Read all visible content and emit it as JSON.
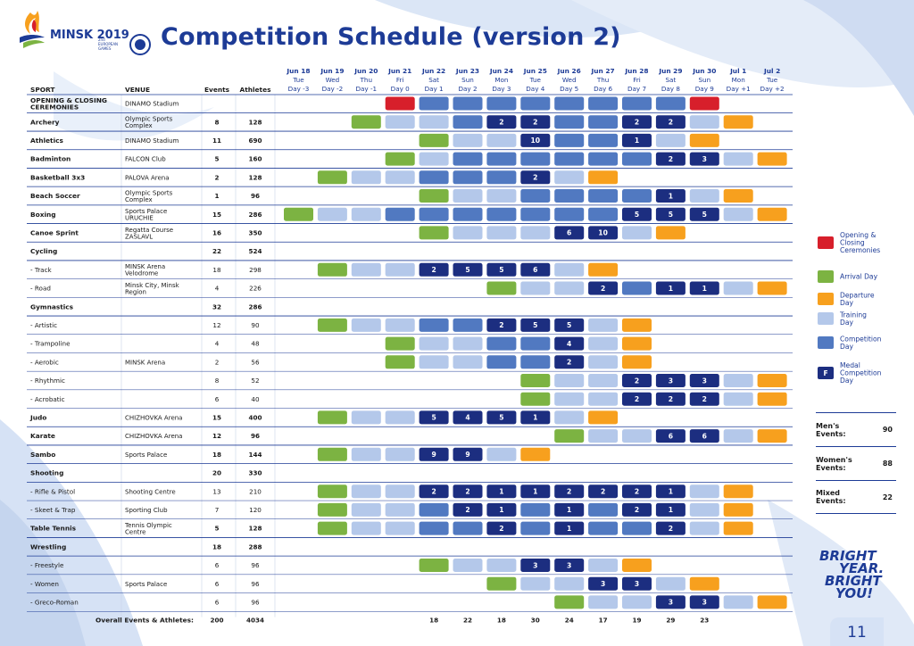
{
  "header": {
    "title": "Competition Schedule (version 2)",
    "logo_text": "MINSK 2019",
    "logo_sub": "2nd EUROPEAN GAMES",
    "page_number": "11"
  },
  "columns": {
    "sport": "SPORT",
    "venue": "VENUE",
    "events": "Events",
    "athletes": "Athletes"
  },
  "days": [
    {
      "date": "Jun 18",
      "dow": "Tue",
      "label": "Day -3"
    },
    {
      "date": "Jun 19",
      "dow": "Wed",
      "label": "Day -2"
    },
    {
      "date": "Jun 20",
      "dow": "Thu",
      "label": "Day -1"
    },
    {
      "date": "Jun 21",
      "dow": "Fri",
      "label": "Day 0"
    },
    {
      "date": "Jun 22",
      "dow": "Sat",
      "label": "Day 1"
    },
    {
      "date": "Jun 23",
      "dow": "Sun",
      "label": "Day 2"
    },
    {
      "date": "Jun 24",
      "dow": "Mon",
      "label": "Day 3"
    },
    {
      "date": "Jun 25",
      "dow": "Tue",
      "label": "Day 4"
    },
    {
      "date": "Jun 26",
      "dow": "Wed",
      "label": "Day 5"
    },
    {
      "date": "Jun 27",
      "dow": "Thu",
      "label": "Day 6"
    },
    {
      "date": "Jun 28",
      "dow": "Fri",
      "label": "Day 7"
    },
    {
      "date": "Jun 29",
      "dow": "Sat",
      "label": "Day 8"
    },
    {
      "date": "Jun 30",
      "dow": "Sun",
      "label": "Day 9"
    },
    {
      "date": "Jul 1",
      "dow": "Mon",
      "label": "Day +1"
    },
    {
      "date": "Jul 2",
      "dow": "Tue",
      "label": "Day +2"
    }
  ],
  "rows": [
    {
      "sport": "OPENING & CLOSING CEREMONIES",
      "venue": "DINAMO Stadium",
      "events": "",
      "athletes": "",
      "bold": true,
      "cells": [
        "",
        "",
        "",
        "O",
        "C",
        "C",
        "C",
        "C",
        "C",
        "C",
        "C",
        "C",
        "O",
        "",
        ""
      ]
    },
    {
      "sport": "Archery",
      "venue": "Olympic Sports Complex",
      "events": "8",
      "athletes": "128",
      "bold": true,
      "cells": [
        "",
        "",
        "A",
        "T",
        "T",
        "C",
        "M:2",
        "M:2",
        "C",
        "C",
        "M:2",
        "M:2",
        "T",
        "D",
        ""
      ]
    },
    {
      "sport": "Athletics",
      "venue": "DINAMO Stadium",
      "events": "11",
      "athletes": "690",
      "bold": true,
      "cells": [
        "",
        "",
        "",
        "",
        "A",
        "T",
        "T",
        "M:10",
        "C",
        "C",
        "M:1",
        "T",
        "D",
        "",
        ""
      ]
    },
    {
      "sport": "Badminton",
      "venue": "FALCON Club",
      "events": "5",
      "athletes": "160",
      "bold": true,
      "cells": [
        "",
        "",
        "",
        "A",
        "T",
        "C",
        "C",
        "C",
        "C",
        "C",
        "C",
        "M:2",
        "M:3",
        "T",
        "D"
      ]
    },
    {
      "sport": "Basketball 3x3",
      "venue": "PALOVA Arena",
      "events": "2",
      "athletes": "128",
      "bold": true,
      "cells": [
        "",
        "A",
        "T",
        "T",
        "C",
        "C",
        "C",
        "M:2",
        "T",
        "D",
        "",
        "",
        "",
        "",
        ""
      ]
    },
    {
      "sport": "Beach Soccer",
      "venue": "Olympic Sports Complex",
      "events": "1",
      "athletes": "96",
      "bold": true,
      "cells": [
        "",
        "",
        "",
        "",
        "A",
        "T",
        "T",
        "C",
        "C",
        "C",
        "C",
        "M:1",
        "T",
        "D",
        ""
      ]
    },
    {
      "sport": "Boxing",
      "venue": "Sports Palace URUCHIE",
      "events": "15",
      "athletes": "286",
      "bold": true,
      "cells": [
        "A",
        "T",
        "T",
        "C",
        "C",
        "C",
        "C",
        "C",
        "C",
        "C",
        "M:5",
        "M:5",
        "M:5",
        "T",
        "D"
      ]
    },
    {
      "sport": "Canoe Sprint",
      "venue": "Regatta Course ZASLAVL",
      "events": "16",
      "athletes": "350",
      "bold": true,
      "cells": [
        "",
        "",
        "",
        "",
        "A",
        "T",
        "T",
        "T",
        "M:6",
        "M:10",
        "T",
        "D",
        "",
        "",
        ""
      ]
    },
    {
      "sport": "Cycling",
      "venue": "",
      "events": "22",
      "athletes": "524",
      "bold": true,
      "cells": [
        "",
        "",
        "",
        "",
        "",
        "",
        "",
        "",
        "",
        "",
        "",
        "",
        "",
        "",
        ""
      ]
    },
    {
      "sport": " - Track",
      "venue": "MINSK Arena Velodrome",
      "events": "18",
      "athletes": "298",
      "bold": false,
      "cells": [
        "",
        "A",
        "T",
        "T",
        "M:2",
        "M:5",
        "M:5",
        "M:6",
        "T",
        "D",
        "",
        "",
        "",
        "",
        ""
      ]
    },
    {
      "sport": " - Road",
      "venue": "Minsk City, Minsk Region",
      "events": "4",
      "athletes": "226",
      "bold": false,
      "cells": [
        "",
        "",
        "",
        "",
        "",
        "",
        "A",
        "T",
        "T",
        "M:2",
        "C",
        "M:1",
        "M:1",
        "T",
        "D"
      ]
    },
    {
      "sport": "Gymnastics",
      "venue": "",
      "events": "32",
      "athletes": "286",
      "bold": true,
      "cells": [
        "",
        "",
        "",
        "",
        "",
        "",
        "",
        "",
        "",
        "",
        "",
        "",
        "",
        "",
        ""
      ]
    },
    {
      "sport": " - Artistic",
      "venue": "",
      "events": "12",
      "athletes": "90",
      "bold": false,
      "cells": [
        "",
        "A",
        "T",
        "T",
        "C",
        "C",
        "M:2",
        "M:5",
        "M:5",
        "T",
        "D",
        "",
        "",
        "",
        ""
      ]
    },
    {
      "sport": " - Trampoline",
      "venue": "",
      "events": "4",
      "athletes": "48",
      "bold": false,
      "cells": [
        "",
        "",
        "",
        "A",
        "T",
        "T",
        "C",
        "C",
        "M:4",
        "T",
        "D",
        "",
        "",
        "",
        ""
      ]
    },
    {
      "sport": " - Aerobic",
      "venue": "MINSK Arena",
      "events": "2",
      "athletes": "56",
      "bold": false,
      "cells": [
        "",
        "",
        "",
        "A",
        "T",
        "T",
        "C",
        "C",
        "M:2",
        "T",
        "D",
        "",
        "",
        "",
        ""
      ]
    },
    {
      "sport": " - Rhythmic",
      "venue": "",
      "events": "8",
      "athletes": "52",
      "bold": false,
      "cells": [
        "",
        "",
        "",
        "",
        "",
        "",
        "",
        "A",
        "T",
        "T",
        "M:2",
        "M:3",
        "M:3",
        "T",
        "D"
      ]
    },
    {
      "sport": " - Acrobatic",
      "venue": "",
      "events": "6",
      "athletes": "40",
      "bold": false,
      "cells": [
        "",
        "",
        "",
        "",
        "",
        "",
        "",
        "A",
        "T",
        "T",
        "M:2",
        "M:2",
        "M:2",
        "T",
        "D"
      ]
    },
    {
      "sport": "Judo",
      "venue": "CHIZHOVKA Arena",
      "events": "15",
      "athletes": "400",
      "bold": true,
      "cells": [
        "",
        "A",
        "T",
        "T",
        "M:5",
        "M:4",
        "M:5",
        "M:1",
        "T",
        "D",
        "",
        "",
        "",
        "",
        ""
      ]
    },
    {
      "sport": "Karate",
      "venue": "CHIZHOVKA Arena",
      "events": "12",
      "athletes": "96",
      "bold": true,
      "cells": [
        "",
        "",
        "",
        "",
        "",
        "",
        "",
        "",
        "A",
        "T",
        "T",
        "M:6",
        "M:6",
        "T",
        "D"
      ]
    },
    {
      "sport": "Sambo",
      "venue": "Sports Palace",
      "events": "18",
      "athletes": "144",
      "bold": true,
      "cells": [
        "",
        "A",
        "T",
        "T",
        "M:9",
        "M:9",
        "T",
        "D",
        "",
        "",
        "",
        "",
        "",
        "",
        ""
      ]
    },
    {
      "sport": "Shooting",
      "venue": "",
      "events": "20",
      "athletes": "330",
      "bold": true,
      "cells": [
        "",
        "",
        "",
        "",
        "",
        "",
        "",
        "",
        "",
        "",
        "",
        "",
        "",
        "",
        ""
      ]
    },
    {
      "sport": " - Rifle & Pistol",
      "venue": "Shooting Centre",
      "events": "13",
      "athletes": "210",
      "bold": false,
      "cells": [
        "",
        "A",
        "T",
        "T",
        "M:2",
        "M:2",
        "M:1",
        "M:1",
        "M:2",
        "M:2",
        "M:2",
        "M:1",
        "T",
        "D",
        ""
      ]
    },
    {
      "sport": " - Skeet & Trap",
      "venue": "Sporting Club",
      "events": "7",
      "athletes": "120",
      "bold": false,
      "cells": [
        "",
        "A",
        "T",
        "T",
        "C",
        "M:2",
        "M:1",
        "C",
        "M:1",
        "C",
        "M:2",
        "M:1",
        "T",
        "D",
        ""
      ]
    },
    {
      "sport": "Table Tennis",
      "venue": "Tennis Olympic Centre",
      "events": "5",
      "athletes": "128",
      "bold": true,
      "cells": [
        "",
        "A",
        "T",
        "T",
        "C",
        "C",
        "M:2",
        "C",
        "M:1",
        "C",
        "C",
        "M:2",
        "T",
        "D",
        ""
      ]
    },
    {
      "sport": "Wrestling",
      "venue": "",
      "events": "18",
      "athletes": "288",
      "bold": true,
      "cells": [
        "",
        "",
        "",
        "",
        "",
        "",
        "",
        "",
        "",
        "",
        "",
        "",
        "",
        "",
        ""
      ]
    },
    {
      "sport": " - Freestyle",
      "venue": "",
      "events": "6",
      "athletes": "96",
      "bold": false,
      "cells": [
        "",
        "",
        "",
        "",
        "A",
        "T",
        "T",
        "M:3",
        "M:3",
        "T",
        "D",
        "",
        "",
        "",
        ""
      ]
    },
    {
      "sport": " - Women",
      "venue": "Sports Palace",
      "events": "6",
      "athletes": "96",
      "bold": false,
      "cells": [
        "",
        "",
        "",
        "",
        "",
        "",
        "A",
        "T",
        "T",
        "M:3",
        "M:3",
        "T",
        "D",
        "",
        ""
      ]
    },
    {
      "sport": " - Greco-Roman",
      "venue": "",
      "events": "6",
      "athletes": "96",
      "bold": false,
      "cells": [
        "",
        "",
        "",
        "",
        "",
        "",
        "",
        "",
        "A",
        "T",
        "T",
        "M:3",
        "M:3",
        "T",
        "D"
      ]
    }
  ],
  "totals": {
    "label": "Overall Events & Athletes:",
    "events": "200",
    "athletes": "4034",
    "per_day": [
      "",
      "",
      "",
      "",
      "18",
      "22",
      "18",
      "30",
      "24",
      "17",
      "19",
      "29",
      "23",
      "",
      ""
    ]
  },
  "legend": [
    {
      "key": "O",
      "label": "Opening & Closing Ceremonies",
      "color": "#d71f2b"
    },
    {
      "key": "A",
      "label": "Arrival Day",
      "color": "#7cb342"
    },
    {
      "key": "D",
      "label": "Departure Day",
      "color": "#f7a01e"
    },
    {
      "key": "T",
      "label": "Training Day",
      "color": "#b4c8ea"
    },
    {
      "key": "C",
      "label": "Competition Day",
      "color": "#5179c1"
    },
    {
      "key": "M",
      "label": "Medal Competition Day",
      "color": "#1c2e80",
      "marker": "F"
    }
  ],
  "stats": [
    {
      "label": "Men's Events:",
      "value": "90"
    },
    {
      "label": "Women's Events:",
      "value": "88"
    },
    {
      "label": "Mixed Events:",
      "value": "22"
    }
  ],
  "slogan": {
    "line1": "BRIGHT",
    "line2": "YEAR.",
    "line3": "BRIGHT",
    "line4": "YOU!"
  }
}
